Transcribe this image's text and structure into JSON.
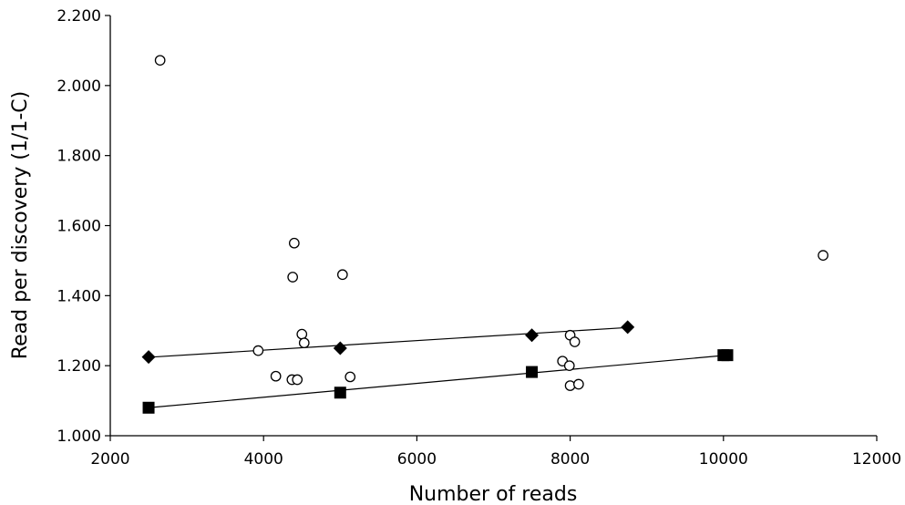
{
  "chart_data": {
    "type": "scatter",
    "title": "",
    "xlabel": "Number of reads",
    "ylabel": "Read per discovery (1/1-C)",
    "xlim": [
      2000,
      12000
    ],
    "ylim": [
      1.0,
      2.2
    ],
    "xticks": [
      2000,
      4000,
      6000,
      8000,
      10000,
      12000
    ],
    "xtick_labels": [
      "2000",
      "4000",
      "6000",
      "8000",
      "10000",
      "12000"
    ],
    "yticks": [
      1.0,
      1.2,
      1.4,
      1.6,
      1.8,
      2.0,
      2.2
    ],
    "ytick_labels": [
      "1.000",
      "1.200",
      "1.400",
      "1.600",
      "1.800",
      "2.000",
      "2.200"
    ],
    "grid": false,
    "legend": "none",
    "series": [
      {
        "marker": "open-circle",
        "line": false,
        "color": "#000000",
        "points": [
          [
            2650,
            2.072
          ],
          [
            4400,
            1.55
          ],
          [
            4380,
            1.453
          ],
          [
            5030,
            1.46
          ],
          [
            11300,
            1.515
          ],
          [
            3930,
            1.243
          ],
          [
            4500,
            1.29
          ],
          [
            4530,
            1.265
          ],
          [
            4160,
            1.17
          ],
          [
            4370,
            1.16
          ],
          [
            4440,
            1.16
          ],
          [
            5130,
            1.168
          ],
          [
            8000,
            1.287
          ],
          [
            8060,
            1.268
          ],
          [
            7900,
            1.213
          ],
          [
            7990,
            1.2
          ],
          [
            8000,
            1.143
          ],
          [
            8110,
            1.147
          ]
        ]
      },
      {
        "marker": "filled-diamond",
        "line": true,
        "color": "#000000",
        "points": [
          [
            2500,
            1.225
          ],
          [
            5000,
            1.25
          ],
          [
            7500,
            1.287
          ],
          [
            8750,
            1.31
          ]
        ],
        "trendline": [
          [
            2500,
            1.224
          ],
          [
            8750,
            1.309
          ]
        ]
      },
      {
        "marker": "filled-square",
        "line": true,
        "color": "#000000",
        "points": [
          [
            2500,
            1.08
          ],
          [
            5000,
            1.123
          ],
          [
            7500,
            1.182
          ],
          [
            10000,
            1.23
          ],
          [
            10050,
            1.23
          ]
        ],
        "trendline": [
          [
            2500,
            1.08
          ],
          [
            10050,
            1.23
          ]
        ]
      }
    ]
  }
}
